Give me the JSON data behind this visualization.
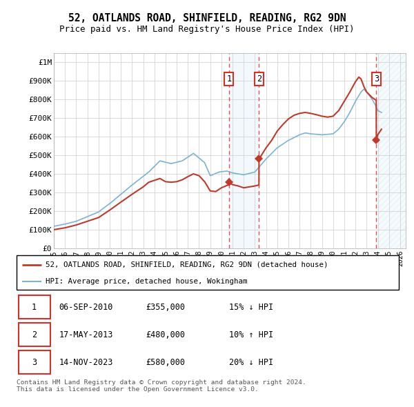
{
  "title1": "52, OATLANDS ROAD, SHINFIELD, READING, RG2 9DN",
  "title2": "Price paid vs. HM Land Registry's House Price Index (HPI)",
  "ylabel_ticks": [
    "£0",
    "£100K",
    "£200K",
    "£300K",
    "£400K",
    "£500K",
    "£600K",
    "£700K",
    "£800K",
    "£900K",
    "£1M"
  ],
  "ytick_vals": [
    0,
    100000,
    200000,
    300000,
    400000,
    500000,
    600000,
    700000,
    800000,
    900000,
    1000000
  ],
  "ylim": [
    0,
    1050000
  ],
  "xlim_start": 1995.0,
  "xlim_end": 2026.5,
  "hpi_color": "#7ab3d4",
  "price_color": "#c0392b",
  "transactions": [
    {
      "date_num": 2010.68,
      "price": 355000,
      "label": "1",
      "date_str": "06-SEP-2010",
      "pct_str": "15% ↓ HPI"
    },
    {
      "date_num": 2013.37,
      "price": 480000,
      "label": "2",
      "date_str": "17-MAY-2013",
      "pct_str": "10% ↑ HPI"
    },
    {
      "date_num": 2023.87,
      "price": 580000,
      "label": "3",
      "date_str": "14-NOV-2023",
      "pct_str": "20% ↓ HPI"
    }
  ],
  "legend_property": "52, OATLANDS ROAD, SHINFIELD, READING, RG2 9DN (detached house)",
  "legend_hpi": "HPI: Average price, detached house, Wokingham",
  "footnote": "Contains HM Land Registry data © Crown copyright and database right 2024.\nThis data is licensed under the Open Government Licence v3.0.",
  "table_rows": [
    {
      "num": "1",
      "date": "06-SEP-2010",
      "price": "£355,000",
      "pct": "15% ↓ HPI"
    },
    {
      "num": "2",
      "date": "17-MAY-2013",
      "price": "£480,000",
      "pct": "10% ↑ HPI"
    },
    {
      "num": "3",
      "date": "14-NOV-2023",
      "price": "£580,000",
      "pct": "20% ↓ HPI"
    }
  ],
  "span1_color": "#cce0f0",
  "span2_color": "#ddeef8",
  "hatch_color": "#b0cfe8"
}
